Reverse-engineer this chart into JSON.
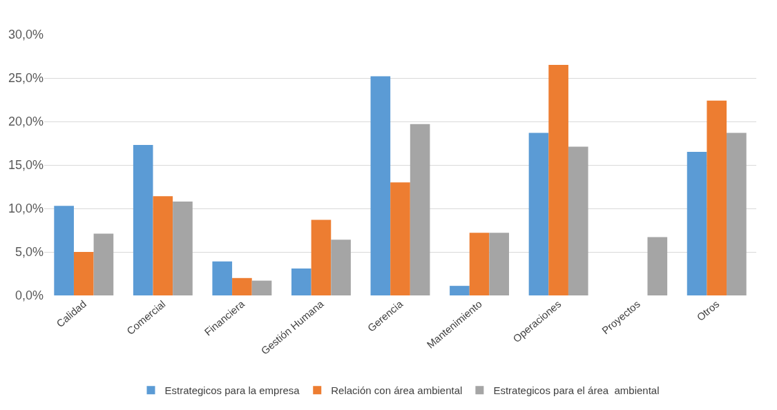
{
  "chart_data": {
    "type": "bar",
    "categories": [
      "Calidad",
      "Comercial",
      "Financiera",
      "Gestión Humana",
      "Gerencia",
      "Mantenimiento",
      "Operaciones",
      "Proyectos",
      "Otros"
    ],
    "series": [
      {
        "name": "Estrategicos para la empresa",
        "color": "#5b9bd5",
        "values": [
          10.3,
          17.3,
          3.9,
          3.1,
          25.2,
          1.1,
          18.7,
          0,
          16.5
        ]
      },
      {
        "name": "Relación con área ambiental",
        "color": "#ed7d31",
        "values": [
          5.0,
          11.4,
          2.0,
          8.7,
          13.0,
          7.2,
          26.5,
          0,
          22.4
        ]
      },
      {
        "name": "Estrategicos para el área  ambiental",
        "color": "#a5a5a5",
        "values": [
          7.1,
          10.8,
          1.7,
          6.4,
          19.7,
          7.2,
          17.1,
          6.7,
          18.7
        ]
      }
    ],
    "ylim": [
      0,
      30
    ],
    "yticks": [
      {
        "value": 0,
        "label": "0,0%"
      },
      {
        "value": 5,
        "label": "5,0%"
      },
      {
        "value": 10,
        "label": "10,0%"
      },
      {
        "value": 15,
        "label": "15,0%"
      },
      {
        "value": 20,
        "label": "20,0%"
      },
      {
        "value": 25,
        "label": "25,0%"
      },
      {
        "value": 30,
        "label": "30,0%"
      }
    ],
    "grid": "y",
    "legend": "bottom"
  }
}
